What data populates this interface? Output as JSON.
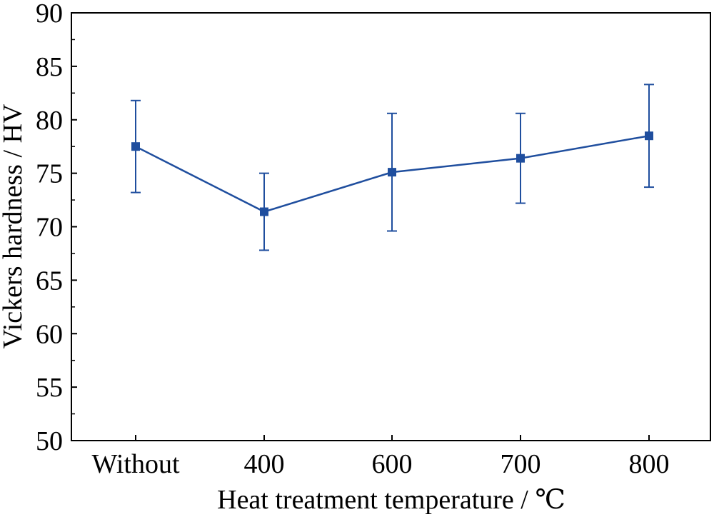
{
  "chart_data": {
    "type": "line",
    "categories": [
      "Without",
      "400",
      "600",
      "700",
      "800"
    ],
    "series": [
      {
        "values": [
          77.5,
          71.4,
          75.1,
          76.4,
          78.5
        ],
        "error_low": [
          73.2,
          67.8,
          69.6,
          72.2,
          73.7
        ],
        "error_high": [
          81.8,
          75.0,
          80.6,
          80.6,
          83.3
        ],
        "color": "#1f4e9e",
        "marker": "square"
      }
    ],
    "xlabel": "Heat treatment temperature / ℃",
    "ylabel": "Vickers hardness / HV",
    "ylim": [
      50,
      90
    ],
    "yticks": [
      50,
      55,
      60,
      65,
      70,
      75,
      80,
      85,
      90
    ],
    "grid": false
  }
}
